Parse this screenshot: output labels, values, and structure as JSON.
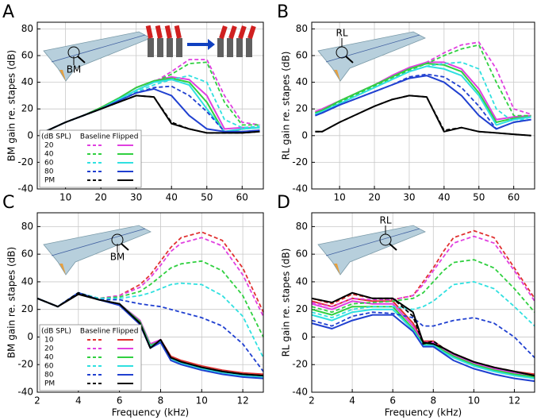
{
  "chart_data": [
    {
      "type": "line",
      "panel_label": "A",
      "ylabel": "BM gain re. stapes (dB)",
      "annotation": "BM",
      "x": [
        3,
        5,
        10,
        15,
        20,
        25,
        30,
        35,
        40,
        45,
        50,
        55,
        60,
        65
      ],
      "xlim": [
        2,
        66
      ],
      "ylim": [
        -40,
        85
      ],
      "xticks": [
        10,
        20,
        30,
        40,
        50,
        60
      ],
      "yticks": [
        -40,
        -20,
        0,
        20,
        40,
        60,
        80
      ],
      "grid": true,
      "legend": "lower left",
      "legend_title": "(dB SPL)",
      "legend_headers": [
        "Baseline",
        "Flipped"
      ],
      "groups": [
        {
          "name": "20",
          "color": "#e040e0",
          "baseline": [
            2,
            4,
            10,
            15,
            20,
            27,
            34,
            40,
            48,
            57,
            57,
            30,
            10,
            8
          ],
          "flipped": [
            2,
            4,
            10,
            15,
            21,
            28,
            36,
            41,
            44,
            42,
            30,
            5,
            6,
            6
          ]
        },
        {
          "name": "40",
          "color": "#30d040",
          "baseline": [
            2,
            4,
            10,
            15,
            20,
            27,
            34,
            40,
            46,
            54,
            55,
            25,
            8,
            8
          ],
          "flipped": [
            2,
            4,
            10,
            15,
            21,
            28,
            36,
            41,
            43,
            40,
            25,
            2,
            5,
            6
          ]
        },
        {
          "name": "60",
          "color": "#30e0e0",
          "baseline": [
            2,
            4,
            10,
            15,
            20,
            27,
            33,
            38,
            42,
            45,
            40,
            12,
            6,
            7
          ],
          "flipped": [
            2,
            4,
            10,
            15,
            20,
            27,
            34,
            40,
            42,
            38,
            20,
            3,
            5,
            6
          ]
        },
        {
          "name": "80",
          "color": "#2040d0",
          "baseline": [
            2,
            4,
            10,
            15,
            20,
            26,
            32,
            36,
            37,
            30,
            18,
            3,
            3,
            4
          ],
          "flipped": [
            2,
            4,
            10,
            15,
            20,
            26,
            32,
            35,
            30,
            15,
            5,
            3,
            3,
            4
          ]
        },
        {
          "name": "PM",
          "color": "#000000",
          "baseline": [
            2,
            4,
            10,
            15,
            20,
            25,
            30,
            29,
            10,
            5,
            2,
            2,
            2,
            3
          ],
          "flipped": [
            2,
            4,
            10,
            15,
            20,
            25,
            30,
            29,
            9,
            5,
            2,
            2,
            2,
            3
          ]
        }
      ]
    },
    {
      "type": "line",
      "panel_label": "B",
      "ylabel": "RL gain re. stapes (dB)",
      "annotation": "RL",
      "x": [
        3,
        5,
        10,
        15,
        20,
        25,
        30,
        35,
        40,
        45,
        50,
        55,
        60,
        65
      ],
      "xlim": [
        2,
        66
      ],
      "ylim": [
        -40,
        85
      ],
      "xticks": [
        10,
        20,
        30,
        40,
        50,
        60
      ],
      "yticks": [
        -40,
        -20,
        0,
        20,
        40,
        60,
        80
      ],
      "grid": true,
      "groups": [
        {
          "name": "20",
          "color": "#e040e0",
          "baseline": [
            18,
            20,
            26,
            32,
            38,
            44,
            50,
            55,
            62,
            68,
            70,
            50,
            20,
            16
          ],
          "flipped": [
            18,
            20,
            26,
            32,
            38,
            45,
            51,
            55,
            55,
            50,
            35,
            12,
            14,
            15
          ]
        },
        {
          "name": "40",
          "color": "#30d040",
          "baseline": [
            17,
            19,
            25,
            31,
            37,
            43,
            49,
            54,
            60,
            65,
            68,
            40,
            15,
            15
          ],
          "flipped": [
            17,
            19,
            26,
            32,
            38,
            44,
            50,
            54,
            53,
            48,
            32,
            10,
            13,
            14
          ]
        },
        {
          "name": "60",
          "color": "#30e0e0",
          "baseline": [
            16,
            18,
            24,
            30,
            36,
            42,
            48,
            52,
            54,
            55,
            50,
            20,
            10,
            14
          ],
          "flipped": [
            16,
            18,
            24,
            30,
            36,
            42,
            48,
            52,
            50,
            45,
            30,
            8,
            12,
            14
          ]
        },
        {
          "name": "80",
          "color": "#2040d0",
          "baseline": [
            15,
            17,
            23,
            28,
            33,
            38,
            44,
            46,
            44,
            36,
            22,
            5,
            10,
            12
          ],
          "flipped": [
            15,
            17,
            23,
            28,
            33,
            38,
            43,
            45,
            40,
            30,
            15,
            5,
            10,
            12
          ]
        },
        {
          "name": "PM",
          "color": "#000000",
          "baseline": [
            3,
            3,
            10,
            16,
            22,
            27,
            30,
            29,
            4,
            6,
            3,
            2,
            1,
            0
          ],
          "flipped": [
            3,
            3,
            10,
            16,
            22,
            27,
            30,
            29,
            3,
            6,
            3,
            2,
            1,
            0
          ]
        }
      ]
    },
    {
      "type": "line",
      "panel_label": "C",
      "ylabel": "BM gain re. stapes (dB)",
      "xlabel": "Frequency (kHz)",
      "annotation": "BM",
      "x": [
        2,
        3,
        4,
        5,
        6,
        7,
        7.5,
        8,
        8.5,
        9,
        10,
        11,
        12,
        13
      ],
      "xlim": [
        2,
        13
      ],
      "ylim": [
        -40,
        90
      ],
      "xticks": [
        2,
        4,
        6,
        8,
        10,
        12
      ],
      "yticks": [
        -40,
        -20,
        0,
        20,
        40,
        60,
        80
      ],
      "grid": true,
      "legend": "lower left",
      "legend_title": "(dB SPL)",
      "legend_headers": [
        "Baseline",
        "Flipped"
      ],
      "groups": [
        {
          "name": "10",
          "color": "#e03030",
          "baseline": [
            28,
            22,
            32,
            28,
            30,
            38,
            45,
            55,
            65,
            72,
            76,
            70,
            50,
            18
          ],
          "flipped": [
            28,
            22,
            32,
            27,
            24,
            11,
            -6,
            -2,
            -14,
            -17,
            -21,
            -24,
            -26,
            -27
          ]
        },
        {
          "name": "20",
          "color": "#e040e0",
          "baseline": [
            28,
            22,
            32,
            28,
            30,
            36,
            43,
            52,
            62,
            68,
            72,
            66,
            45,
            15
          ],
          "flipped": [
            28,
            22,
            32,
            27,
            24,
            12,
            -5,
            -2,
            -16,
            -18,
            -22,
            -25,
            -27,
            -28
          ]
        },
        {
          "name": "40",
          "color": "#30d040",
          "baseline": [
            28,
            22,
            32,
            28,
            29,
            33,
            38,
            44,
            50,
            53,
            55,
            48,
            30,
            0
          ],
          "flipped": [
            28,
            22,
            32,
            27,
            24,
            11,
            -6,
            -3,
            -15,
            -18,
            -22,
            -25,
            -27,
            -28
          ]
        },
        {
          "name": "60",
          "color": "#30e0e0",
          "baseline": [
            28,
            22,
            32,
            28,
            28,
            30,
            32,
            35,
            38,
            39,
            38,
            30,
            15,
            -15
          ],
          "flipped": [
            28,
            22,
            32,
            27,
            24,
            10,
            -7,
            -3,
            -16,
            -19,
            -23,
            -26,
            -28,
            -29
          ]
        },
        {
          "name": "80",
          "color": "#2040d0",
          "baseline": [
            28,
            22,
            32,
            27,
            27,
            24,
            23,
            22,
            20,
            18,
            14,
            8,
            -5,
            -25
          ],
          "flipped": [
            28,
            22,
            32,
            27,
            23,
            9,
            -8,
            -4,
            -17,
            -20,
            -24,
            -27,
            -29,
            -30
          ]
        },
        {
          "name": "PM",
          "color": "#000000",
          "baseline": [
            28,
            22,
            32,
            27,
            24,
            10,
            -8,
            -2,
            -15,
            -18,
            -22,
            -25,
            -27,
            -28
          ],
          "flipped": [
            28,
            22,
            31,
            27,
            24,
            10,
            -8,
            -2,
            -15,
            -18,
            -22,
            -25,
            -27,
            -28
          ]
        }
      ]
    },
    {
      "type": "line",
      "panel_label": "D",
      "ylabel": "RL gain re. stapes (dB)",
      "xlabel": "Frequency (kHz)",
      "annotation": "RL",
      "x": [
        2,
        3,
        4,
        5,
        6,
        7,
        7.5,
        8,
        8.5,
        9,
        10,
        11,
        12,
        13
      ],
      "xlim": [
        2,
        13
      ],
      "ylim": [
        -40,
        90
      ],
      "xticks": [
        2,
        4,
        6,
        8,
        10,
        12
      ],
      "yticks": [
        -40,
        -20,
        0,
        20,
        40,
        60,
        80
      ],
      "grid": true,
      "groups": [
        {
          "name": "10",
          "color": "#e03030",
          "baseline": [
            28,
            24,
            31,
            28,
            27,
            30,
            40,
            50,
            62,
            72,
            77,
            72,
            50,
            28
          ],
          "flipped": [
            26,
            22,
            28,
            26,
            26,
            10,
            -3,
            -3,
            -8,
            -12,
            -18,
            -22,
            -25,
            -27
          ]
        },
        {
          "name": "20",
          "color": "#e040e0",
          "baseline": [
            25,
            22,
            28,
            27,
            27,
            30,
            38,
            48,
            58,
            68,
            73,
            68,
            48,
            26
          ],
          "flipped": [
            24,
            20,
            26,
            24,
            24,
            8,
            -4,
            -4,
            -9,
            -13,
            -19,
            -23,
            -26,
            -28
          ]
        },
        {
          "name": "40",
          "color": "#30d040",
          "baseline": [
            22,
            18,
            24,
            25,
            26,
            28,
            32,
            40,
            48,
            54,
            56,
            50,
            35,
            18
          ],
          "flipped": [
            20,
            16,
            22,
            22,
            22,
            6,
            -5,
            -5,
            -10,
            -14,
            -20,
            -24,
            -27,
            -29
          ]
        },
        {
          "name": "60",
          "color": "#30e0e0",
          "baseline": [
            18,
            14,
            20,
            22,
            22,
            20,
            22,
            26,
            32,
            38,
            40,
            35,
            22,
            8
          ],
          "flipped": [
            16,
            12,
            18,
            20,
            20,
            5,
            -6,
            -6,
            -11,
            -15,
            -21,
            -25,
            -28,
            -30
          ]
        },
        {
          "name": "80",
          "color": "#2040d0",
          "baseline": [
            12,
            8,
            15,
            18,
            17,
            14,
            8,
            8,
            10,
            12,
            14,
            10,
            0,
            -15
          ],
          "flipped": [
            10,
            6,
            12,
            16,
            16,
            4,
            -7,
            -7,
            -12,
            -17,
            -23,
            -27,
            -30,
            -32
          ]
        },
        {
          "name": "PM",
          "color": "#000000",
          "baseline": [
            28,
            25,
            32,
            28,
            28,
            15,
            -5,
            -3,
            -8,
            -12,
            -18,
            -22,
            -25,
            -28
          ],
          "flipped": [
            28,
            25,
            32,
            28,
            28,
            18,
            -4,
            -5,
            -8,
            -12,
            -18,
            -22,
            -25,
            -28
          ]
        }
      ]
    }
  ]
}
